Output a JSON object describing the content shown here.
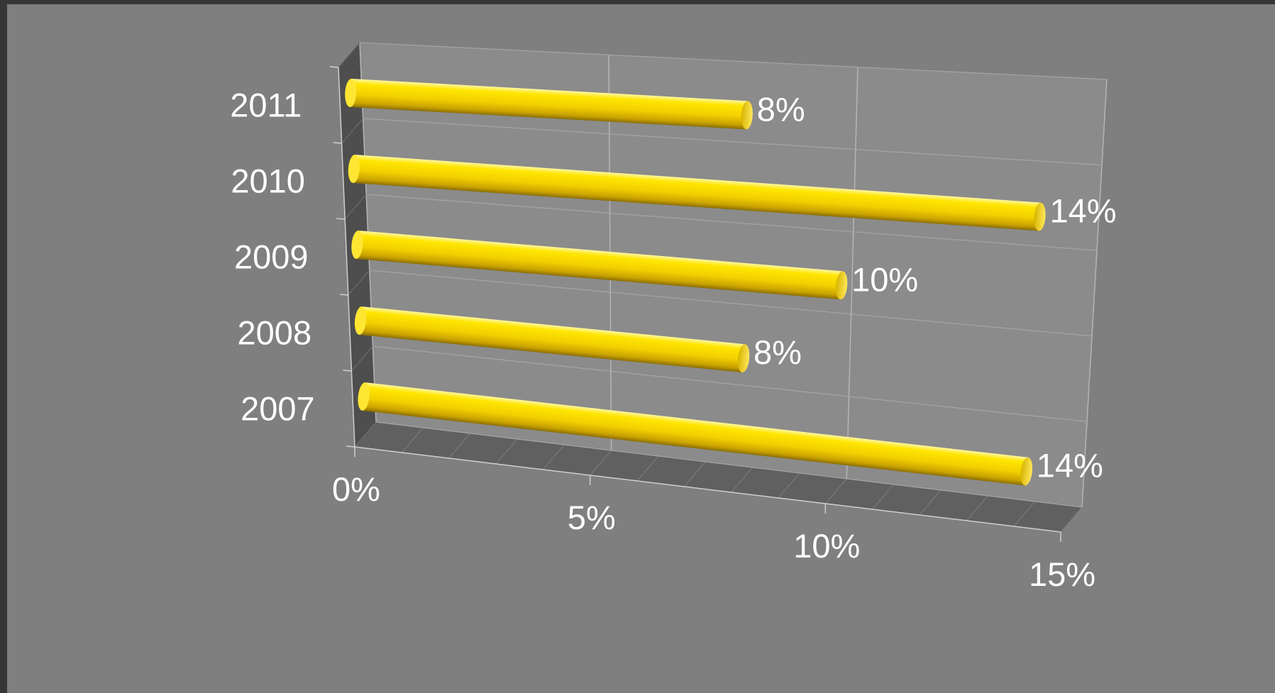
{
  "chart_data": {
    "type": "bar",
    "orientation": "horizontal",
    "style": "3d-cylinder",
    "categories": [
      "2007",
      "2008",
      "2009",
      "2010",
      "2011"
    ],
    "values": [
      14,
      8,
      10,
      14,
      8
    ],
    "data_labels": [
      "14%",
      "8%",
      "10%",
      "14%",
      "8%"
    ],
    "x_ticks": [
      "0%",
      "5%",
      "10%",
      "15%"
    ],
    "xlim": [
      0,
      15
    ],
    "grid": true,
    "legend": "none",
    "title": "",
    "xlabel": "",
    "ylabel": "",
    "colors": {
      "bar": "#f5d200",
      "background": "#7f7f7f",
      "frame": "#363636",
      "text": "#ffffff"
    }
  }
}
